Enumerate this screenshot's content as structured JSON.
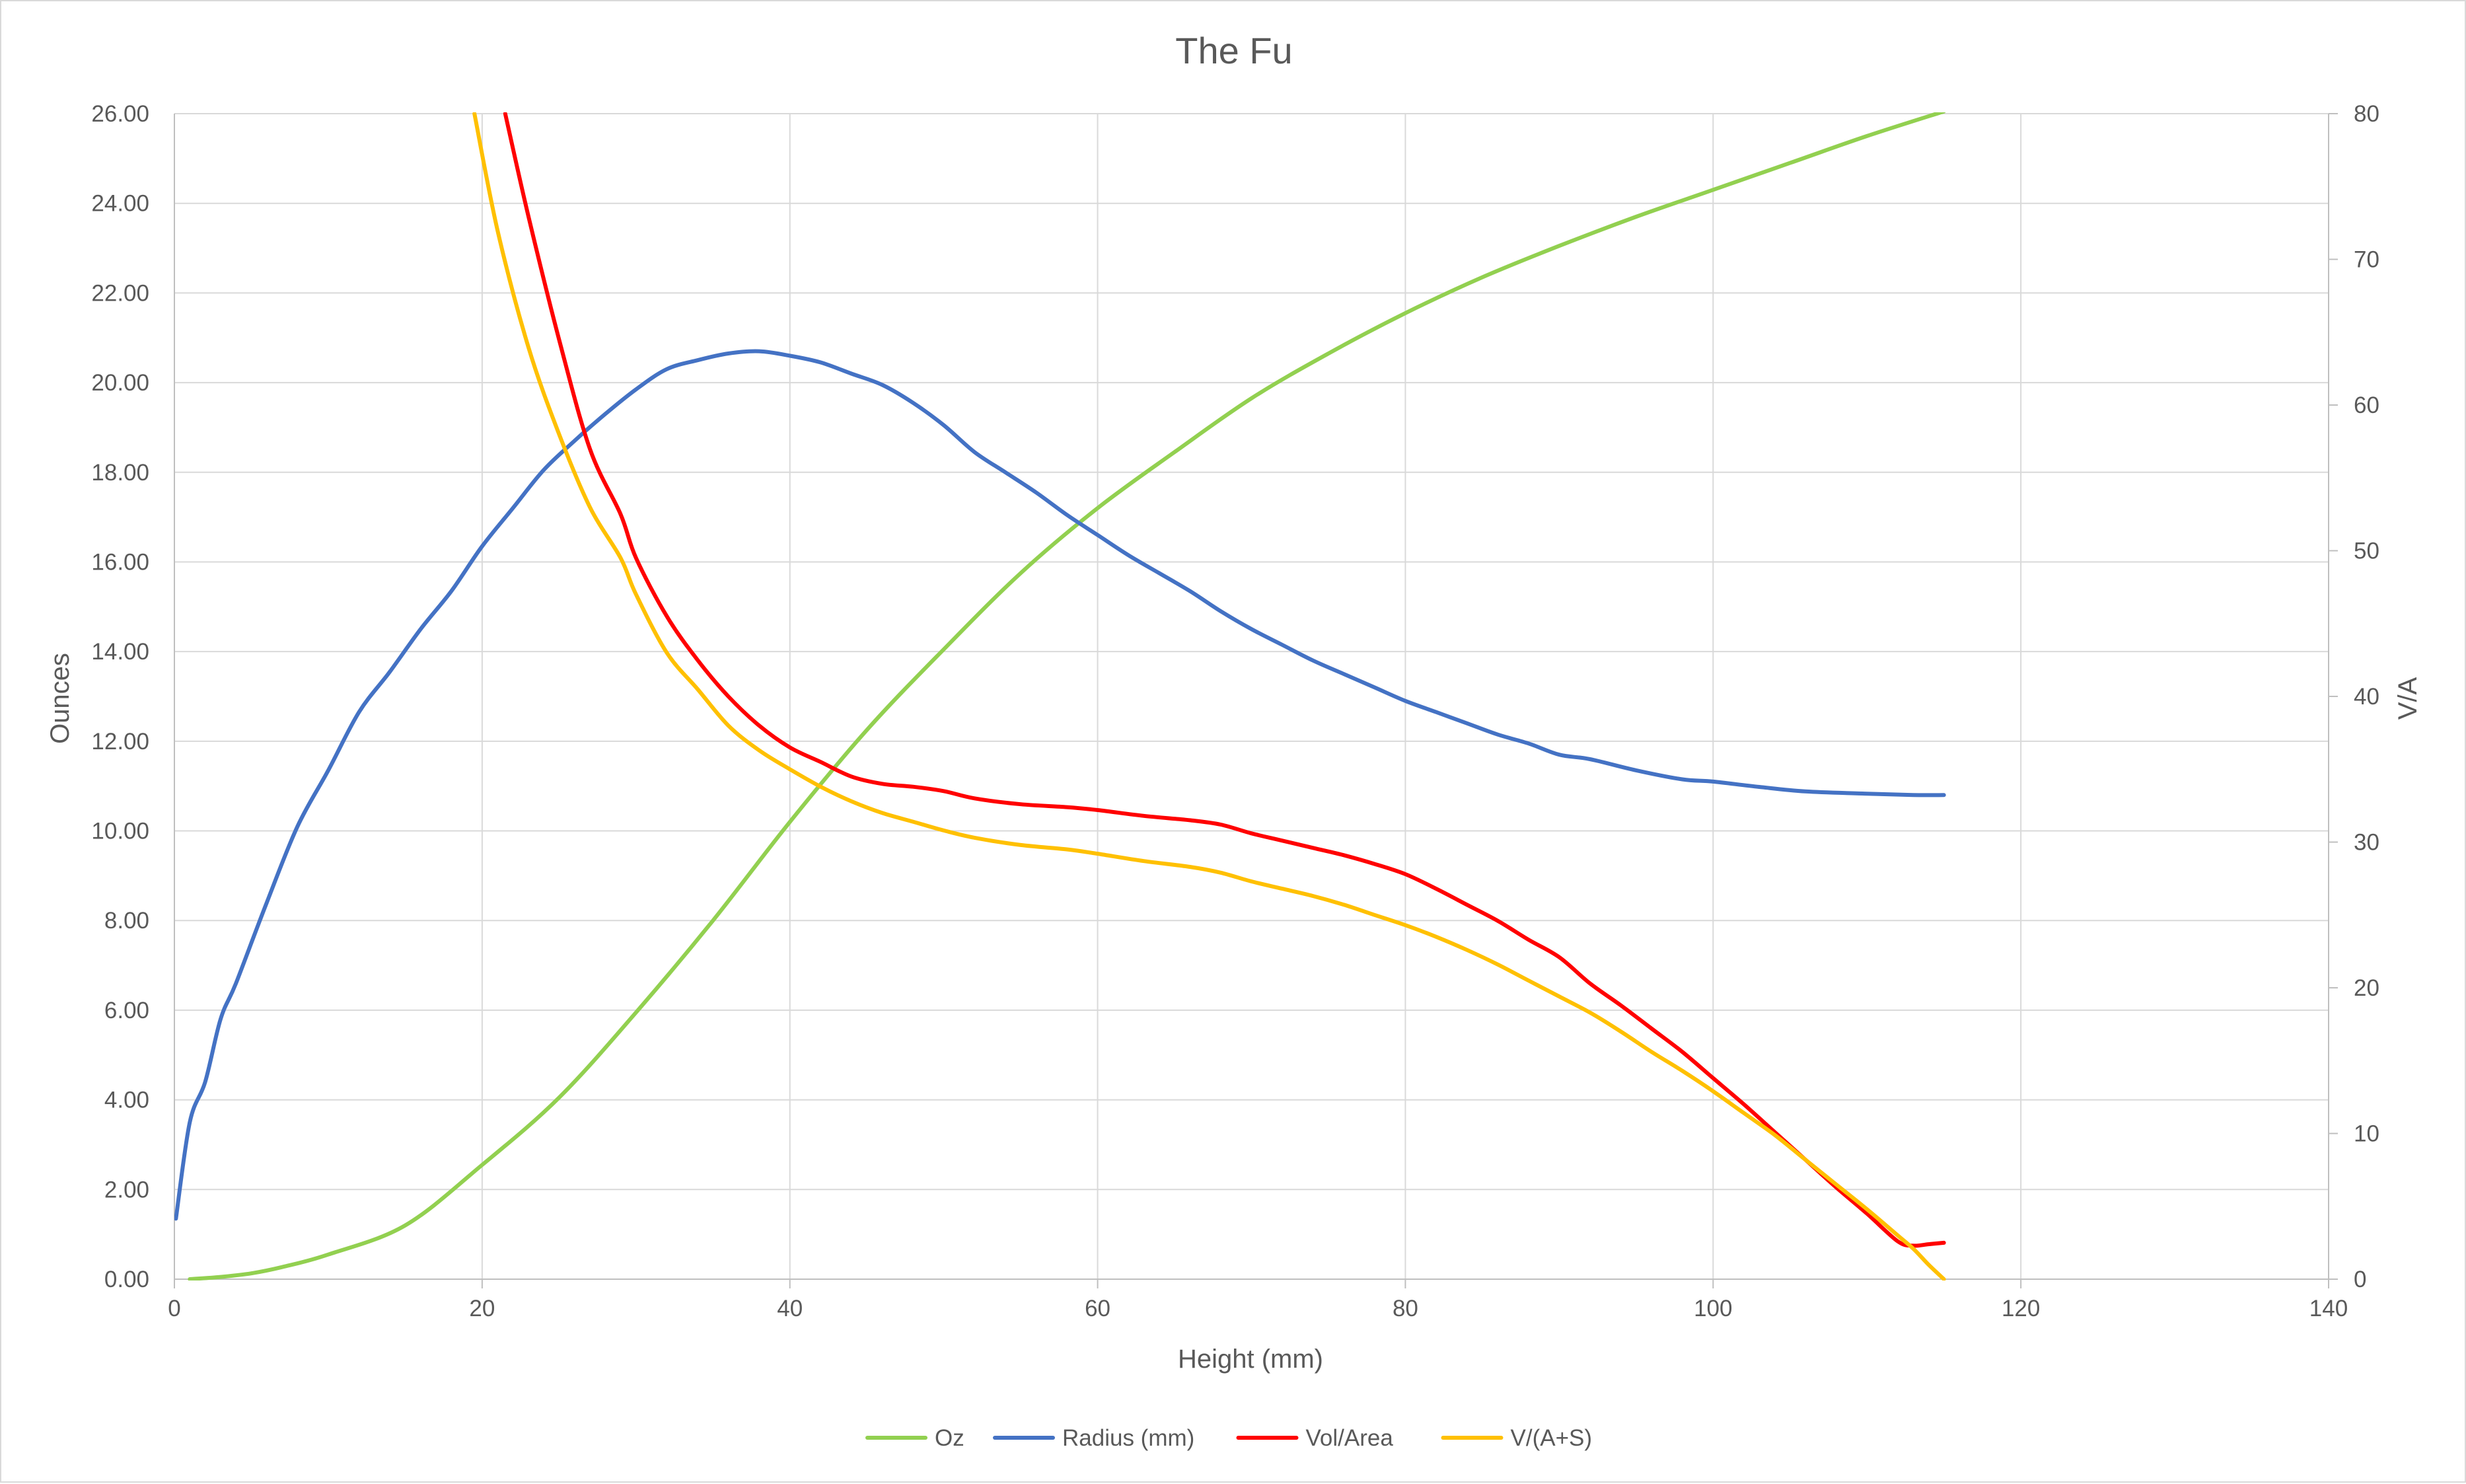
{
  "chart_data": {
    "type": "line",
    "title": "The Fu",
    "xlabel": "Height (mm)",
    "ylabel": "Ounces",
    "y2label": "V/A",
    "xlim": [
      0,
      140
    ],
    "ylim": [
      0,
      26
    ],
    "y2lim": [
      0,
      80
    ],
    "x_ticks": [
      "0",
      "20",
      "40",
      "60",
      "80",
      "100",
      "120",
      "140"
    ],
    "y_ticks": [
      "0.00",
      "2.00",
      "4.00",
      "6.00",
      "8.00",
      "10.00",
      "12.00",
      "14.00",
      "16.00",
      "18.00",
      "20.00",
      "22.00",
      "24.00",
      "26.00"
    ],
    "y2_ticks": [
      "0",
      "10",
      "20",
      "30",
      "40",
      "50",
      "60",
      "70",
      "80"
    ],
    "grid": true,
    "legend_position": "bottom",
    "series": [
      {
        "name": "Oz",
        "axis": "left",
        "color": "#92d050",
        "points": [
          [
            1,
            0
          ],
          [
            3,
            0.05
          ],
          [
            5,
            0.13
          ],
          [
            7,
            0.27
          ],
          [
            10,
            0.55
          ],
          [
            15,
            1.2
          ],
          [
            20,
            2.55
          ],
          [
            25,
            4.05
          ],
          [
            30,
            5.95
          ],
          [
            35,
            8.0
          ],
          [
            40,
            10.2
          ],
          [
            45,
            12.25
          ],
          [
            50,
            14.05
          ],
          [
            55,
            15.75
          ],
          [
            60,
            17.2
          ],
          [
            65,
            18.45
          ],
          [
            70,
            19.65
          ],
          [
            75,
            20.65
          ],
          [
            80,
            21.55
          ],
          [
            85,
            22.35
          ],
          [
            90,
            23.05
          ],
          [
            95,
            23.7
          ],
          [
            100,
            24.3
          ],
          [
            105,
            24.9
          ],
          [
            110,
            25.5
          ],
          [
            115,
            26.05
          ]
        ]
      },
      {
        "name": "Radius (mm)",
        "axis": "left",
        "color": "#4472c4",
        "points": [
          [
            0.1,
            1.35
          ],
          [
            1,
            3.5
          ],
          [
            2,
            4.4
          ],
          [
            3,
            5.8
          ],
          [
            4,
            6.6
          ],
          [
            6,
            8.4
          ],
          [
            8,
            10.1
          ],
          [
            10,
            11.35
          ],
          [
            12,
            12.65
          ],
          [
            14,
            13.55
          ],
          [
            16,
            14.5
          ],
          [
            18,
            15.35
          ],
          [
            20,
            16.35
          ],
          [
            22,
            17.2
          ],
          [
            24,
            18.05
          ],
          [
            26,
            18.7
          ],
          [
            28,
            19.3
          ],
          [
            30,
            19.85
          ],
          [
            32,
            20.3
          ],
          [
            34,
            20.5
          ],
          [
            36,
            20.65
          ],
          [
            38,
            20.7
          ],
          [
            40,
            20.6
          ],
          [
            42,
            20.45
          ],
          [
            44,
            20.2
          ],
          [
            46,
            19.95
          ],
          [
            48,
            19.55
          ],
          [
            50,
            19.05
          ],
          [
            52,
            18.45
          ],
          [
            54,
            18.0
          ],
          [
            56,
            17.55
          ],
          [
            58,
            17.05
          ],
          [
            60,
            16.6
          ],
          [
            62,
            16.15
          ],
          [
            64,
            15.75
          ],
          [
            66,
            15.35
          ],
          [
            68,
            14.9
          ],
          [
            70,
            14.5
          ],
          [
            72,
            14.15
          ],
          [
            74,
            13.8
          ],
          [
            76,
            13.5
          ],
          [
            78,
            13.2
          ],
          [
            80,
            12.9
          ],
          [
            82,
            12.65
          ],
          [
            84,
            12.4
          ],
          [
            86,
            12.15
          ],
          [
            88,
            11.95
          ],
          [
            90,
            11.7
          ],
          [
            92,
            11.6
          ],
          [
            95,
            11.35
          ],
          [
            98,
            11.15
          ],
          [
            100,
            11.1
          ],
          [
            103,
            10.98
          ],
          [
            106,
            10.88
          ],
          [
            110,
            10.83
          ],
          [
            113,
            10.8
          ],
          [
            115,
            10.8
          ]
        ]
      },
      {
        "name": "Vol/Area",
        "axis": "right",
        "color": "#ff0000",
        "points": [
          [
            21.5,
            80
          ],
          [
            23,
            73
          ],
          [
            25,
            64.5
          ],
          [
            27,
            57
          ],
          [
            29,
            52.5
          ],
          [
            30,
            49.5
          ],
          [
            32,
            45.5
          ],
          [
            34,
            42.5
          ],
          [
            36,
            40
          ],
          [
            38,
            38
          ],
          [
            40,
            36.5
          ],
          [
            42,
            35.5
          ],
          [
            44,
            34.5
          ],
          [
            46,
            34
          ],
          [
            48,
            33.8
          ],
          [
            50,
            33.5
          ],
          [
            52,
            33
          ],
          [
            55,
            32.6
          ],
          [
            58,
            32.4
          ],
          [
            60,
            32.2
          ],
          [
            63,
            31.8
          ],
          [
            66,
            31.5
          ],
          [
            68,
            31.2
          ],
          [
            70,
            30.6
          ],
          [
            72,
            30.1
          ],
          [
            74,
            29.6
          ],
          [
            76,
            29.1
          ],
          [
            78,
            28.5
          ],
          [
            80,
            27.8
          ],
          [
            82,
            26.8
          ],
          [
            84,
            25.7
          ],
          [
            86,
            24.6
          ],
          [
            88,
            23.3
          ],
          [
            90,
            22.1
          ],
          [
            92,
            20.3
          ],
          [
            94,
            18.8
          ],
          [
            96,
            17.2
          ],
          [
            98,
            15.6
          ],
          [
            100,
            13.8
          ],
          [
            102,
            12
          ],
          [
            104,
            10.1
          ],
          [
            106,
            8.2
          ],
          [
            108,
            6.3
          ],
          [
            110,
            4.5
          ],
          [
            112,
            2.6
          ],
          [
            113,
            2.3
          ],
          [
            114,
            2.4
          ],
          [
            115,
            2.5
          ]
        ]
      },
      {
        "name": "V/(A+S)",
        "axis": "right",
        "color": "#ffc000",
        "points": [
          [
            19.5,
            80
          ],
          [
            21,
            72
          ],
          [
            23,
            64
          ],
          [
            25,
            58
          ],
          [
            27,
            53
          ],
          [
            29,
            49.5
          ],
          [
            30,
            47
          ],
          [
            32,
            43
          ],
          [
            34,
            40.5
          ],
          [
            36,
            38
          ],
          [
            38,
            36.3
          ],
          [
            40,
            35
          ],
          [
            42,
            33.8
          ],
          [
            44,
            32.8
          ],
          [
            46,
            32
          ],
          [
            48,
            31.4
          ],
          [
            50,
            30.8
          ],
          [
            52,
            30.3
          ],
          [
            55,
            29.8
          ],
          [
            58,
            29.5
          ],
          [
            60,
            29.2
          ],
          [
            63,
            28.7
          ],
          [
            66,
            28.3
          ],
          [
            68,
            27.9
          ],
          [
            70,
            27.3
          ],
          [
            72,
            26.8
          ],
          [
            74,
            26.3
          ],
          [
            76,
            25.7
          ],
          [
            78,
            25
          ],
          [
            80,
            24.3
          ],
          [
            82,
            23.5
          ],
          [
            84,
            22.6
          ],
          [
            86,
            21.6
          ],
          [
            88,
            20.5
          ],
          [
            90,
            19.4
          ],
          [
            92,
            18.3
          ],
          [
            94,
            17
          ],
          [
            96,
            15.6
          ],
          [
            98,
            14.3
          ],
          [
            100,
            12.9
          ],
          [
            102,
            11.4
          ],
          [
            104,
            9.9
          ],
          [
            106,
            8.2
          ],
          [
            108,
            6.5
          ],
          [
            110,
            4.8
          ],
          [
            112,
            3
          ],
          [
            113,
            2.1
          ],
          [
            114,
            1
          ],
          [
            115,
            0
          ]
        ]
      }
    ]
  }
}
